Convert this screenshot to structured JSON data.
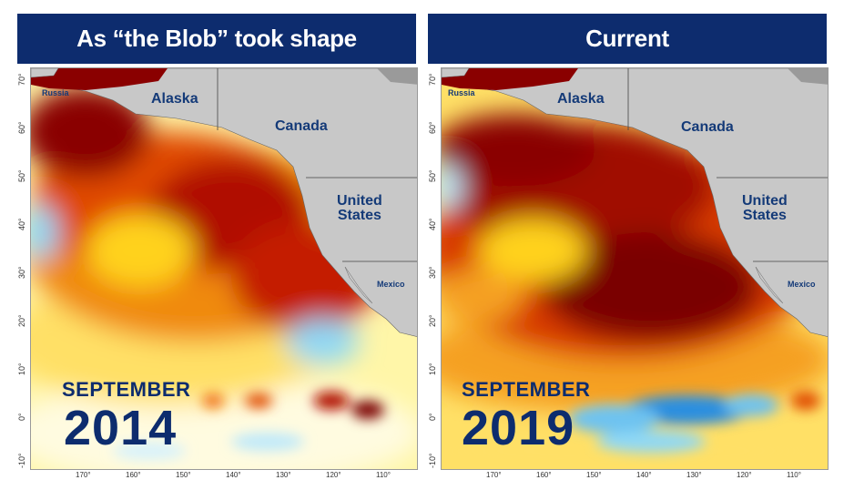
{
  "panels": [
    {
      "title": "As “the Blob” took shape",
      "month": "SEPTEMBER",
      "year": "2014"
    },
    {
      "title": "Current",
      "month": "SEPTEMBER",
      "year": "2019"
    }
  ],
  "map_labels": {
    "russia": "Russia",
    "alaska": "Alaska",
    "canada": "Canada",
    "us_line1": "United",
    "us_line2": "States",
    "mexico": "Mexico"
  },
  "latitude_ticks": [
    "70°",
    "60°",
    "50°",
    "40°",
    "30°",
    "20°",
    "10°",
    "0°",
    "-10°"
  ],
  "longitude_ticks": [
    "170°",
    "160°",
    "150°",
    "140°",
    "130°",
    "120°",
    "110°"
  ],
  "colors": {
    "title_bar": "#0d2c6e",
    "land": "#c8c8c8",
    "warm_extreme": "#7a0000",
    "warm_high": "#c41a00",
    "warm_mid": "#f07010",
    "warm_low": "#ffd21a",
    "neutral": "#fff6a8",
    "cool": "#8fd8f5",
    "cold": "#2a8fe0"
  }
}
